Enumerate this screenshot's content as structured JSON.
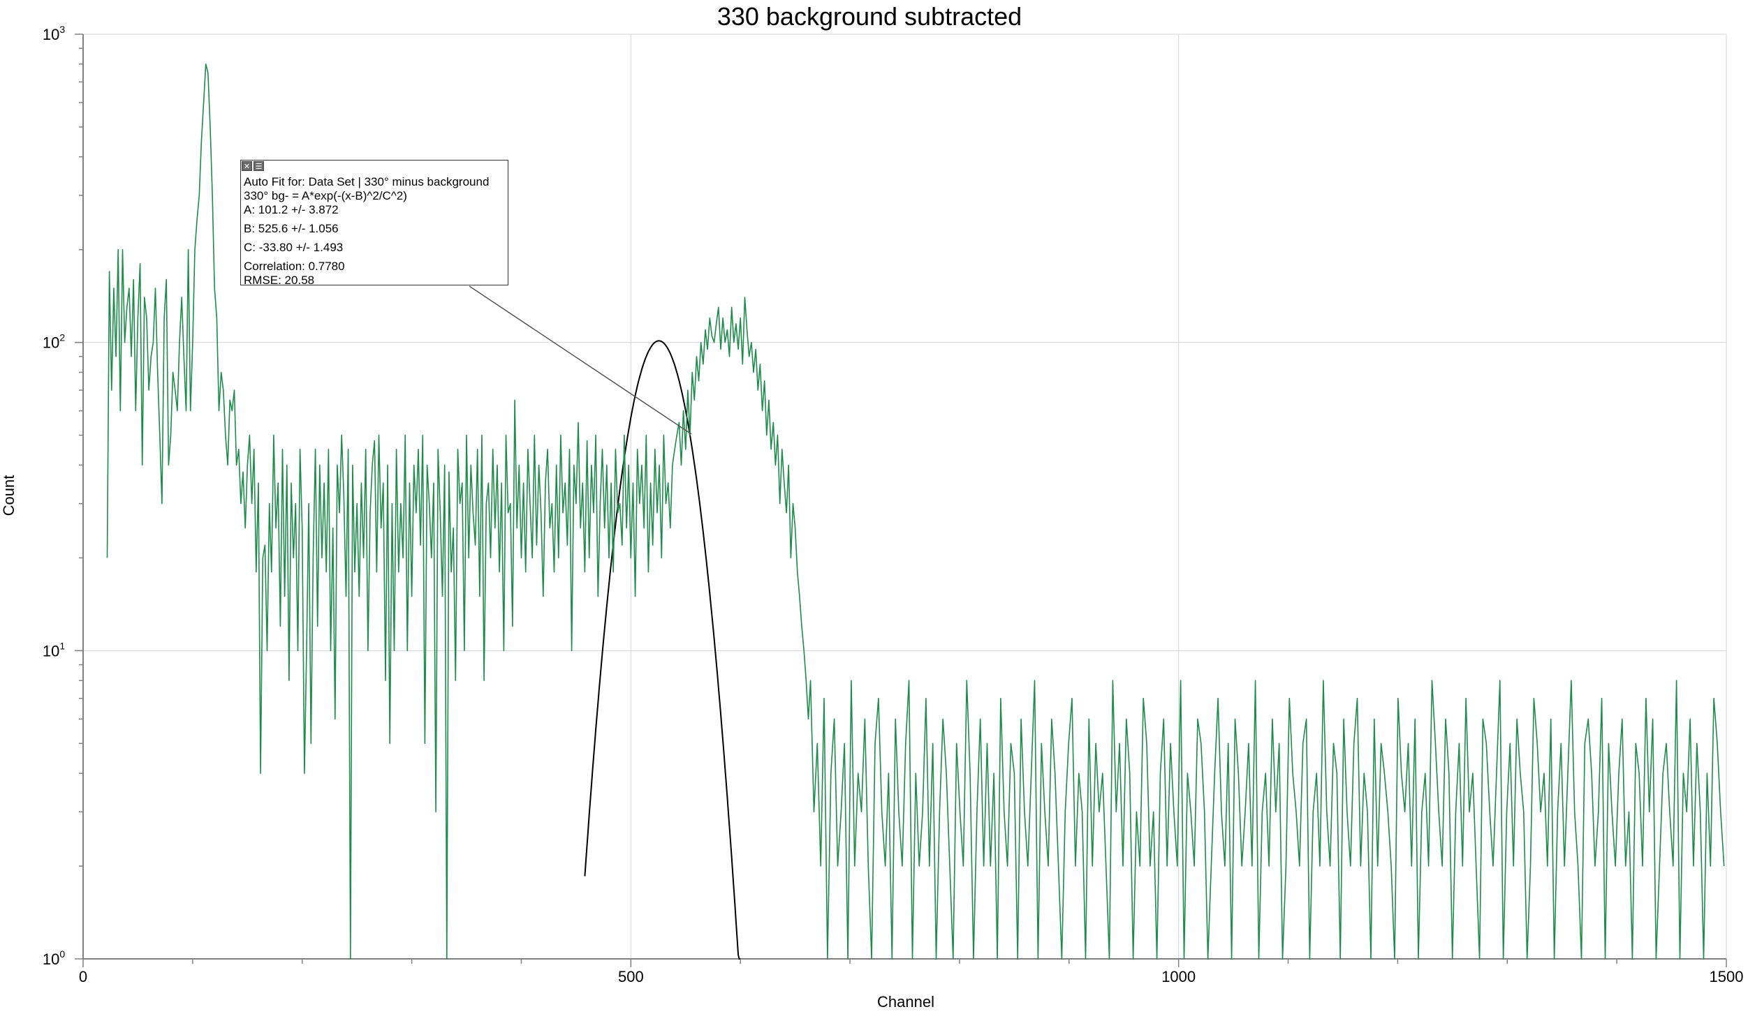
{
  "chart_data": {
    "type": "line",
    "title": "330 background subtracted",
    "xlabel": "Channel",
    "ylabel": "Count",
    "xlim": [
      0,
      1500
    ],
    "ylim": [
      1,
      1000
    ],
    "yscale": "log",
    "grid": true,
    "x_ticks": [
      "0",
      "500",
      "1000",
      "1500"
    ],
    "y_ticks": [
      {
        "base": "10",
        "exp": "0"
      },
      {
        "base": "10",
        "exp": "1"
      },
      {
        "base": "10",
        "exp": "2"
      },
      {
        "base": "10",
        "exp": "3"
      }
    ],
    "colors": {
      "data": "#1e8b4c",
      "fit": "#000000",
      "grid": "#d4d4d4",
      "axis": "#808080"
    },
    "series": [
      {
        "x_start": 22,
        "x_step": 2,
        "values": [
          20,
          170,
          70,
          150,
          90,
          200,
          60,
          200,
          100,
          130,
          150,
          90,
          160,
          60,
          120,
          180,
          40,
          140,
          120,
          70,
          90,
          100,
          150,
          80,
          50,
          30,
          120,
          160,
          40,
          50,
          80,
          70,
          60,
          100,
          140,
          90,
          60,
          200,
          60,
          100,
          200,
          250,
          300,
          450,
          600,
          800,
          750,
          500,
          300,
          150,
          120,
          60,
          80,
          70,
          50,
          40,
          65,
          60,
          70,
          40,
          45,
          30,
          38,
          25,
          40,
          50,
          30,
          45,
          18,
          35,
          4,
          20,
          22,
          10,
          30,
          18,
          50,
          25,
          35,
          12,
          45,
          15,
          40,
          8,
          35,
          20,
          30,
          10,
          45,
          25,
          4,
          10,
          30,
          5,
          20,
          45,
          12,
          40,
          20,
          35,
          18,
          45,
          10,
          25,
          6,
          40,
          28,
          50,
          32,
          15,
          45,
          1,
          40,
          18,
          30,
          15,
          35,
          20,
          45,
          10,
          28,
          40,
          48,
          18,
          50,
          25,
          35,
          8,
          40,
          5,
          30,
          10,
          45,
          18,
          30,
          20,
          50,
          10,
          35,
          15,
          40,
          28,
          45,
          22,
          50,
          5,
          40,
          30,
          20,
          35,
          3,
          45,
          28,
          15,
          40,
          1,
          38,
          18,
          25,
          8,
          45,
          30,
          35,
          10,
          50,
          20,
          40,
          28,
          22,
          45,
          15,
          50,
          8,
          30,
          35,
          20,
          45,
          25,
          40,
          18,
          35,
          10,
          50,
          28,
          30,
          12,
          65,
          25,
          40,
          20,
          35,
          18,
          45,
          30,
          20,
          50,
          22,
          40,
          28,
          15,
          35,
          45,
          25,
          30,
          18,
          40,
          20,
          50,
          28,
          35,
          22,
          45,
          10,
          40,
          30,
          55,
          25,
          35,
          18,
          48,
          20,
          40,
          28,
          50,
          15,
          30,
          45,
          25,
          40,
          20,
          35,
          18,
          45,
          28,
          30,
          22,
          50,
          25,
          40,
          20,
          35,
          15,
          45,
          30,
          40,
          25,
          50,
          18,
          35,
          22,
          45,
          28,
          40,
          20,
          50,
          30,
          35,
          25,
          40,
          45,
          50,
          55,
          40,
          60,
          45,
          70,
          50,
          80,
          65,
          90,
          75,
          100,
          85,
          110,
          95,
          120,
          105,
          100,
          115,
          130,
          95,
          120,
          100,
          110,
          90,
          130,
          100,
          115,
          95,
          120,
          85,
          140,
          110,
          90,
          100,
          80,
          95,
          70,
          85,
          60,
          75,
          50,
          65,
          45,
          55,
          40,
          50,
          30,
          45,
          35,
          28,
          40,
          20,
          30,
          25,
          18,
          15,
          12,
          10,
          8,
          6
        ]
      }
    ],
    "fit": {
      "A": 101.2,
      "B": 525.6,
      "C": -33.8,
      "x_range": [
        458,
        600
      ],
      "panel_lines": [
        "Auto Fit for: Data Set | 330° minus background",
        "330° bg- = A*exp(-(x-B)^2/C^2)",
        "A: 101.2 +/- 3.872",
        "B: 525.6 +/- 1.056",
        "C: -33.80 +/- 1.493",
        "Correlation: 0.7780",
        "RMSE: 20.58"
      ]
    }
  }
}
